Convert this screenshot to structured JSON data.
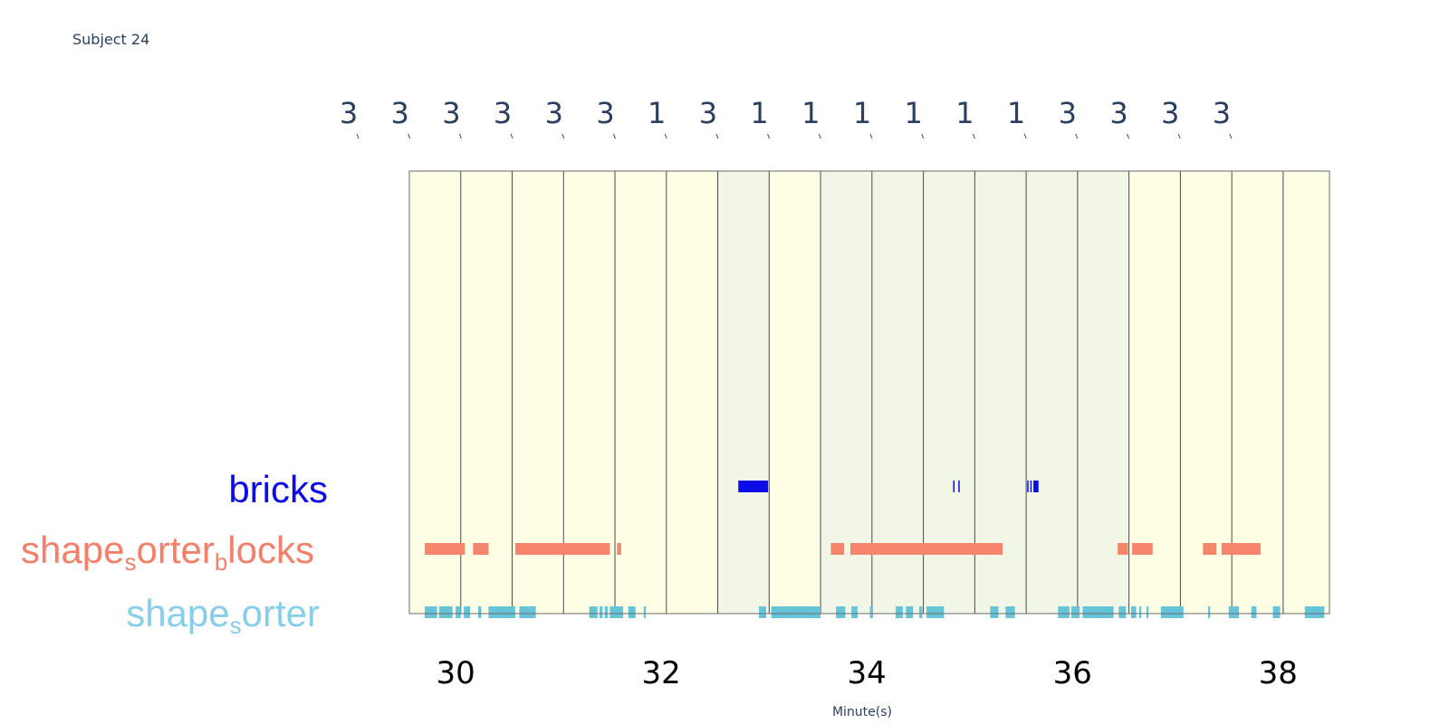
{
  "subject_label": "Subject 24",
  "chart_data": {
    "type": "timeline",
    "title": "Subject 24",
    "xlabel": "Minute(s)",
    "xlim": [
      29.55,
      38.5
    ],
    "x_ticks": [
      30,
      32,
      34,
      36,
      38
    ],
    "segments": [
      {
        "start": 29.55,
        "end": 30.05,
        "label": "3",
        "color": "#fefee5"
      },
      {
        "start": 30.05,
        "end": 30.55,
        "label": "3",
        "color": "#fefee5"
      },
      {
        "start": 30.55,
        "end": 31.05,
        "label": "3",
        "color": "#fefee5"
      },
      {
        "start": 31.05,
        "end": 31.55,
        "label": "3",
        "color": "#fefee5"
      },
      {
        "start": 31.55,
        "end": 32.05,
        "label": "3",
        "color": "#fefee5"
      },
      {
        "start": 32.05,
        "end": 32.55,
        "label": "3",
        "color": "#fefee5"
      },
      {
        "start": 32.55,
        "end": 33.05,
        "label": "1",
        "color": "#f1f6e6"
      },
      {
        "start": 33.05,
        "end": 33.55,
        "label": "3",
        "color": "#fefee5"
      },
      {
        "start": 33.55,
        "end": 34.05,
        "label": "1",
        "color": "#f1f6e6"
      },
      {
        "start": 34.05,
        "end": 34.55,
        "label": "1",
        "color": "#f1f6e6"
      },
      {
        "start": 34.55,
        "end": 35.05,
        "label": "1",
        "color": "#f1f6e6"
      },
      {
        "start": 35.05,
        "end": 35.55,
        "label": "1",
        "color": "#f1f6e6"
      },
      {
        "start": 35.55,
        "end": 36.05,
        "label": "1",
        "color": "#f1f6e6"
      },
      {
        "start": 36.05,
        "end": 36.55,
        "label": "1",
        "color": "#f1f6e6"
      },
      {
        "start": 36.55,
        "end": 37.05,
        "label": "3",
        "color": "#fefee5"
      },
      {
        "start": 37.05,
        "end": 37.55,
        "label": "3",
        "color": "#fefee5"
      },
      {
        "start": 37.55,
        "end": 38.05,
        "label": "3",
        "color": "#fefee5"
      },
      {
        "start": 38.05,
        "end": 38.5,
        "label": "3",
        "color": "#fefee5"
      }
    ],
    "series": [
      {
        "name": "bricks",
        "color": "#0c0ce8",
        "intervals": [
          [
            32.75,
            33.04
          ],
          [
            34.84,
            34.85
          ],
          [
            34.89,
            34.9
          ],
          [
            35.56,
            35.57
          ],
          [
            35.59,
            35.6
          ],
          [
            35.62,
            35.67
          ]
        ]
      },
      {
        "name": "shape_sorter_blocks",
        "color": "#f5866b",
        "intervals": [
          [
            29.7,
            30.09
          ],
          [
            30.17,
            30.32
          ],
          [
            30.58,
            31.5
          ],
          [
            31.57,
            31.61
          ],
          [
            33.65,
            33.78
          ],
          [
            33.84,
            35.32
          ],
          [
            36.44,
            36.54
          ],
          [
            36.58,
            36.78
          ],
          [
            37.27,
            37.4
          ],
          [
            37.45,
            37.83
          ]
        ]
      },
      {
        "name": "shape_sorter",
        "color": "#66c4d9",
        "intervals": [
          [
            29.7,
            29.82
          ],
          [
            29.84,
            29.97
          ],
          [
            30.0,
            30.05
          ],
          [
            30.08,
            30.14
          ],
          [
            30.22,
            30.25
          ],
          [
            30.32,
            30.58
          ],
          [
            30.62,
            30.78
          ],
          [
            31.3,
            31.38
          ],
          [
            31.4,
            31.43
          ],
          [
            31.45,
            31.48
          ],
          [
            31.5,
            31.63
          ],
          [
            31.68,
            31.75
          ],
          [
            31.83,
            31.85
          ],
          [
            32.95,
            33.02
          ],
          [
            33.07,
            33.55
          ],
          [
            33.7,
            33.79
          ],
          [
            33.85,
            33.91
          ],
          [
            34.03,
            34.06
          ],
          [
            34.28,
            34.35
          ],
          [
            34.38,
            34.45
          ],
          [
            34.51,
            34.54
          ],
          [
            34.58,
            34.75
          ],
          [
            35.2,
            35.28
          ],
          [
            35.35,
            35.44
          ],
          [
            35.86,
            35.97
          ],
          [
            35.99,
            36.07
          ],
          [
            36.1,
            36.4
          ],
          [
            36.45,
            36.52
          ],
          [
            36.57,
            36.62
          ],
          [
            36.65,
            36.67
          ],
          [
            36.72,
            36.74
          ],
          [
            36.86,
            37.08
          ],
          [
            37.32,
            37.34
          ],
          [
            37.52,
            37.62
          ],
          [
            37.74,
            37.79
          ],
          [
            37.95,
            38.02
          ],
          [
            38.26,
            38.45
          ]
        ]
      }
    ],
    "row_labels": [
      {
        "key": "bricks",
        "parts": [
          {
            "t": "bricks"
          }
        ]
      },
      {
        "key": "shape_sorter_blocks",
        "parts": [
          {
            "t": "shape"
          },
          {
            "t": "s",
            "sub": true
          },
          {
            "t": "orter"
          },
          {
            "t": "b",
            "sub": true
          },
          {
            "t": "locks"
          }
        ]
      },
      {
        "key": "shape_sorter",
        "parts": [
          {
            "t": "shape"
          },
          {
            "t": "s",
            "sub": true
          },
          {
            "t": "orter"
          }
        ]
      }
    ]
  }
}
